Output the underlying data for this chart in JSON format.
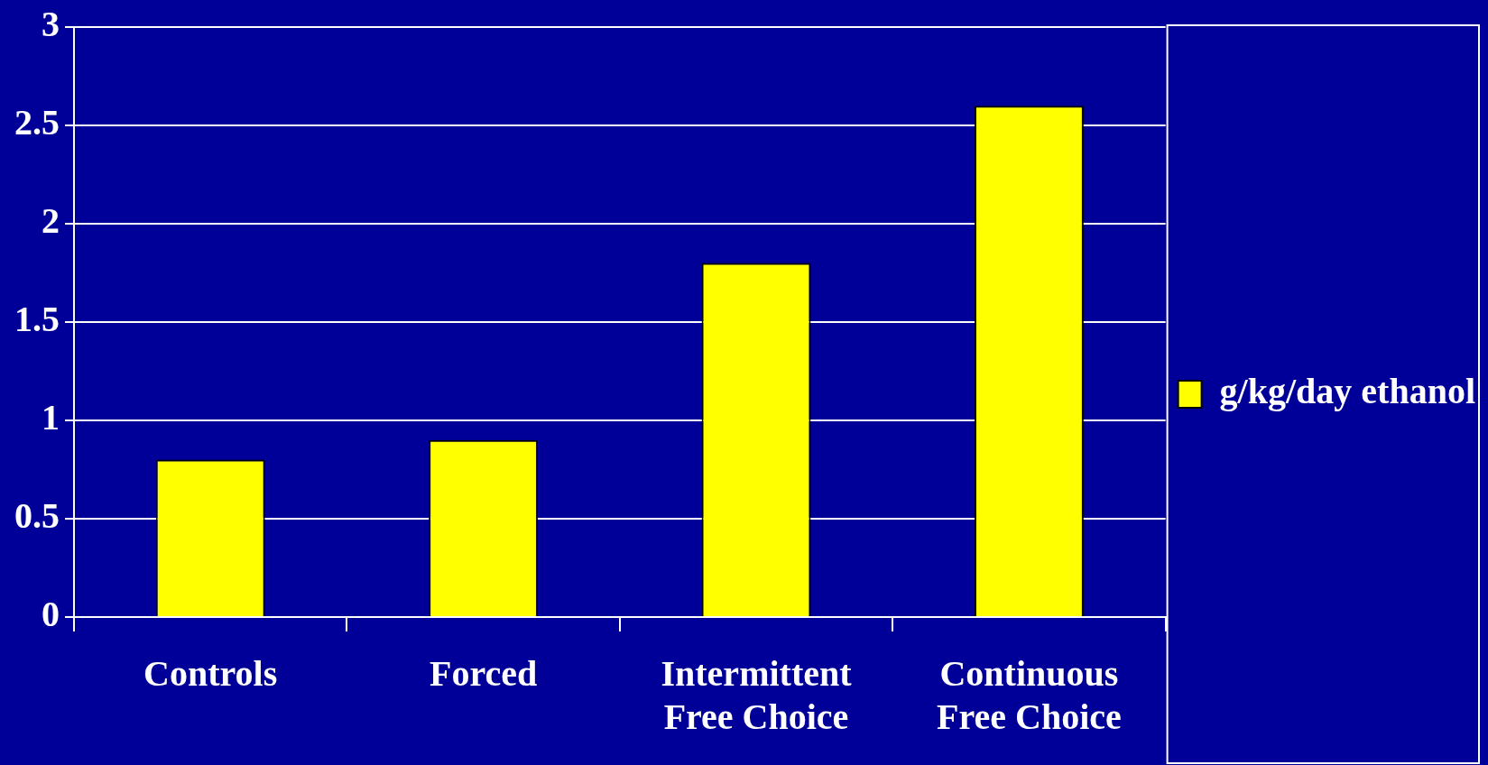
{
  "chart_data": {
    "type": "bar",
    "categories": [
      "Controls",
      "Forced",
      "Intermittent Free Choice",
      "Continuous Free Choice"
    ],
    "series": [
      {
        "name": "g/kg/day ethanol",
        "color": "#ffff00",
        "values": [
          0.8,
          0.9,
          1.8,
          2.6
        ]
      }
    ],
    "ylim": [
      0,
      3
    ],
    "yticks": [
      0,
      0.5,
      1,
      1.5,
      2,
      2.5,
      3
    ],
    "grid": "y",
    "legend": "right"
  }
}
